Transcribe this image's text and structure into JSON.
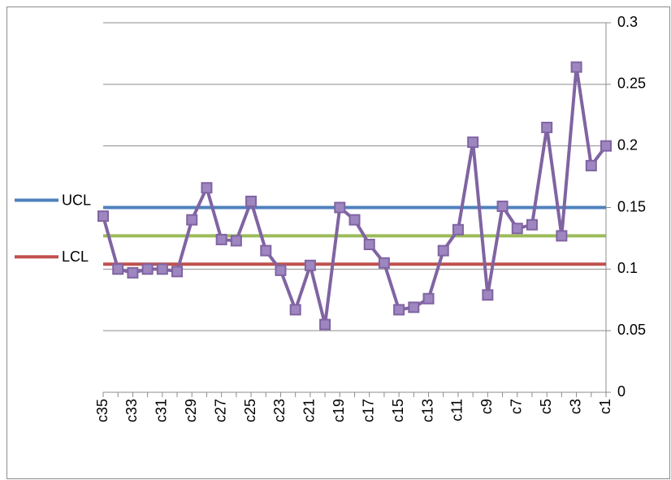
{
  "chart_data": {
    "type": "line",
    "categories": [
      "c35",
      null,
      "c33",
      null,
      "c31",
      null,
      "c29",
      null,
      "c27",
      null,
      "c25",
      null,
      "c23",
      null,
      "c21",
      null,
      "c19",
      null,
      "c17",
      null,
      "c15",
      null,
      "c13",
      null,
      "c11",
      null,
      "c9",
      null,
      "c7",
      null,
      "c5",
      null,
      "c3",
      null,
      "c1"
    ],
    "series": [
      {
        "name": "UCL",
        "color": "#4f81bd",
        "values": [
          0.15,
          0.15,
          0.15,
          0.15,
          0.15,
          0.15,
          0.15,
          0.15,
          0.15,
          0.15,
          0.15,
          0.15,
          0.15,
          0.15,
          0.15,
          0.15,
          0.15,
          0.15,
          0.15,
          0.15,
          0.15,
          0.15,
          0.15,
          0.15,
          0.15,
          0.15,
          0.15,
          0.15,
          0.15,
          0.15,
          0.15,
          0.15,
          0.15,
          0.15,
          0.15
        ]
      },
      {
        "color": "#9bbb59",
        "values": [
          0.127,
          0.127,
          0.127,
          0.127,
          0.127,
          0.127,
          0.127,
          0.127,
          0.127,
          0.127,
          0.127,
          0.127,
          0.127,
          0.127,
          0.127,
          0.127,
          0.127,
          0.127,
          0.127,
          0.127,
          0.127,
          0.127,
          0.127,
          0.127,
          0.127,
          0.127,
          0.127,
          0.127,
          0.127,
          0.127,
          0.127,
          0.127,
          0.127,
          0.127,
          0.127
        ]
      },
      {
        "name": "LCL",
        "color": "#c0504d",
        "values": [
          0.104,
          0.104,
          0.104,
          0.104,
          0.104,
          0.104,
          0.104,
          0.104,
          0.104,
          0.104,
          0.104,
          0.104,
          0.104,
          0.104,
          0.104,
          0.104,
          0.104,
          0.104,
          0.104,
          0.104,
          0.104,
          0.104,
          0.104,
          0.104,
          0.104,
          0.104,
          0.104,
          0.104,
          0.104,
          0.104,
          0.104,
          0.104,
          0.104,
          0.104,
          0.104
        ]
      },
      {
        "color": "#8064a2",
        "markers": true,
        "values": [
          0.143,
          0.1,
          0.097,
          0.1,
          0.1,
          0.098,
          0.14,
          0.166,
          0.124,
          0.123,
          0.155,
          0.115,
          0.099,
          0.067,
          0.103,
          0.055,
          0.15,
          0.14,
          0.12,
          0.105,
          0.067,
          0.069,
          0.076,
          0.115,
          0.132,
          0.203,
          0.079,
          0.151,
          0.133,
          0.136,
          0.215,
          0.127,
          0.264,
          0.184,
          0.2
        ]
      }
    ],
    "ylim": [
      0,
      0.3
    ],
    "yticks": [
      0,
      0.05,
      0.1,
      0.15,
      0.2,
      0.25,
      0.3
    ],
    "y_axis_side": "right",
    "grid": true
  }
}
